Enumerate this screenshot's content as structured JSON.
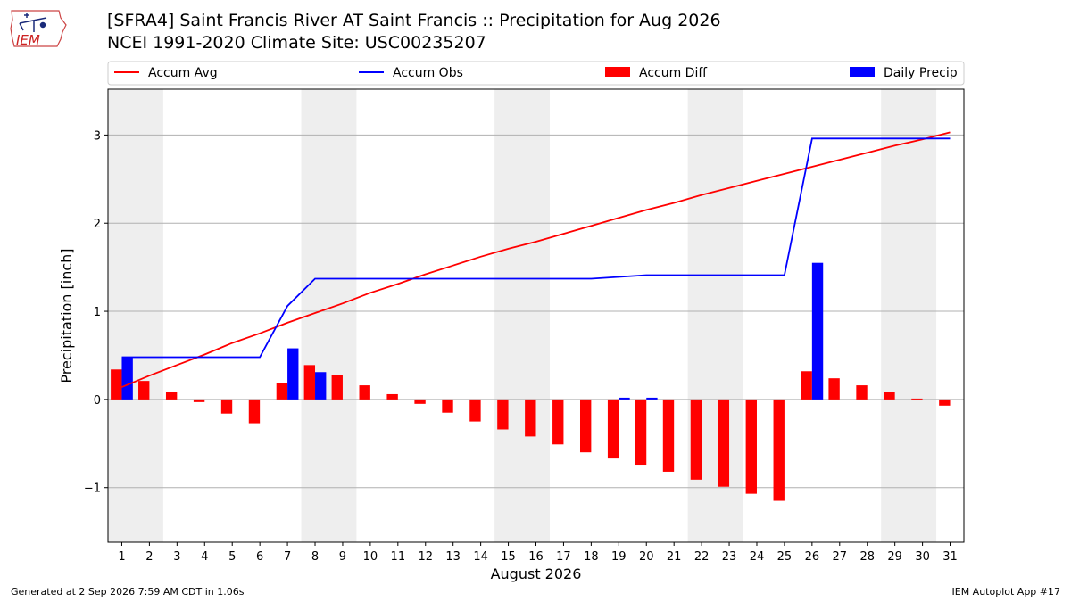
{
  "header": {
    "title_line1": "[SFRA4] Saint Francis River  AT Saint Francis :: Precipitation for Aug 2026",
    "title_line2": "NCEI 1991-2020 Climate Site: USC00235207",
    "logo_text": "IEM"
  },
  "footer": {
    "left": "Generated at 2 Sep 2026 7:59 AM CDT in 1.06s",
    "right": "IEM Autoplot App #17"
  },
  "chart_data": {
    "type": "bar",
    "title": "[SFRA4] Saint Francis River  AT Saint Francis :: Precipitation for Aug 2026",
    "subtitle": "NCEI 1991-2020 Climate Site: USC00235207",
    "xlabel": "August 2026",
    "ylabel": "Precipitation [inch]",
    "ylim": [
      -1.62,
      3.52
    ],
    "xlim": [
      0.5,
      31.5
    ],
    "yticks": [
      -1,
      0,
      1,
      2,
      3
    ],
    "ytick_labels": [
      "−1",
      "0",
      "1",
      "2",
      "3"
    ],
    "categories": [
      "1",
      "2",
      "3",
      "4",
      "5",
      "6",
      "7",
      "8",
      "9",
      "10",
      "11",
      "12",
      "13",
      "14",
      "15",
      "16",
      "17",
      "18",
      "19",
      "20",
      "21",
      "22",
      "23",
      "24",
      "25",
      "26",
      "27",
      "28",
      "29",
      "30",
      "31"
    ],
    "grid": "horizontal",
    "legend_position": "top",
    "shaded_days": [
      [
        1,
        2
      ],
      [
        8,
        9
      ],
      [
        15,
        16
      ],
      [
        22,
        23
      ],
      [
        29,
        30
      ]
    ],
    "colors": {
      "avg": "#ff0000",
      "obs": "#0000ff",
      "diff": "#ff0000",
      "daily": "#0000ff",
      "shade": "#eeeeee",
      "grid": "#b0b0b0"
    },
    "series": [
      {
        "name": "Accum Avg",
        "kind": "line",
        "color": "#ff0000",
        "values": [
          0.14,
          0.27,
          0.39,
          0.51,
          0.64,
          0.75,
          0.87,
          0.98,
          1.09,
          1.21,
          1.31,
          1.42,
          1.52,
          1.62,
          1.71,
          1.79,
          1.88,
          1.97,
          2.06,
          2.15,
          2.23,
          2.32,
          2.4,
          2.48,
          2.56,
          2.64,
          2.72,
          2.8,
          2.88,
          2.95,
          3.03
        ]
      },
      {
        "name": "Accum Obs",
        "kind": "line",
        "color": "#0000ff",
        "values": [
          0.48,
          0.48,
          0.48,
          0.48,
          0.48,
          0.48,
          1.06,
          1.37,
          1.37,
          1.37,
          1.37,
          1.37,
          1.37,
          1.37,
          1.37,
          1.37,
          1.37,
          1.37,
          1.39,
          1.41,
          1.41,
          1.41,
          1.41,
          1.41,
          1.41,
          2.96,
          2.96,
          2.96,
          2.96,
          2.96,
          2.96
        ]
      },
      {
        "name": "Accum Diff",
        "kind": "bar",
        "color": "#ff0000",
        "values": [
          0.34,
          0.21,
          0.09,
          -0.03,
          -0.16,
          -0.27,
          0.19,
          0.39,
          0.28,
          0.16,
          0.06,
          -0.05,
          -0.15,
          -0.25,
          -0.34,
          -0.42,
          -0.51,
          -0.6,
          -0.67,
          -0.74,
          -0.82,
          -0.91,
          -0.99,
          -1.07,
          -1.15,
          0.32,
          0.24,
          0.16,
          0.08,
          0.01,
          -0.07
        ]
      },
      {
        "name": "Daily Precip",
        "kind": "bar",
        "color": "#0000ff",
        "values": [
          0.48,
          0,
          0,
          0,
          0,
          0,
          0.58,
          0.31,
          0,
          0,
          0,
          0,
          0,
          0,
          0,
          0,
          0,
          0,
          0.02,
          0.02,
          0,
          0,
          0,
          0,
          0,
          1.55,
          0,
          0,
          0,
          0,
          0
        ]
      }
    ]
  }
}
